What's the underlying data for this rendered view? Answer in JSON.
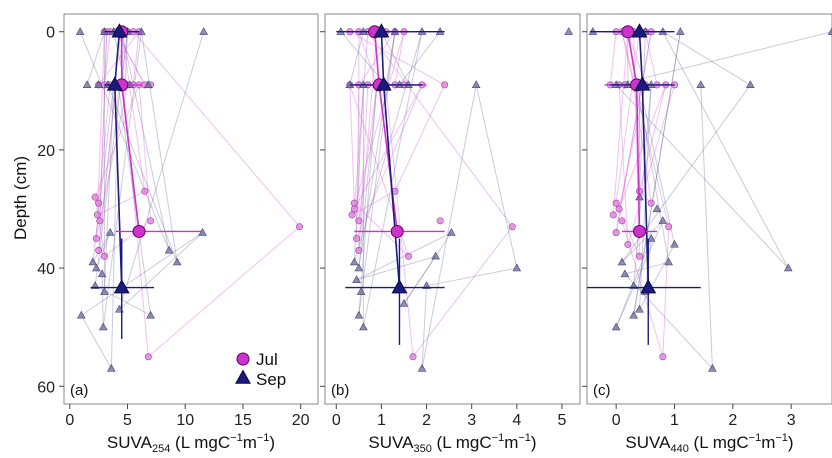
{
  "chart_data": {
    "type": "scatter",
    "ylabel": "Depth (cm)",
    "ylim": [
      63,
      -3
    ],
    "yticks": [
      0,
      20,
      40,
      60
    ],
    "legend": {
      "placement": "bottom-right of panel (a)",
      "entries": [
        {
          "label": "Jul",
          "color": "#cc33cc",
          "marker": "circle"
        },
        {
          "label": "Sep",
          "color": "#1a1a80",
          "marker": "triangle"
        }
      ]
    },
    "colors": {
      "jul": "#cc33cc",
      "jul_light": "#dd77dd",
      "sep": "#1a1a80",
      "sep_light": "#6a6a99"
    },
    "panels": [
      {
        "label": "(a)",
        "xlabel": {
          "base": "SUVA",
          "sub": "254",
          "rest": " (L mgC",
          "sup1": "−1",
          "mid": "m",
          "sup2": "−1",
          "end": ")"
        },
        "xlim": [
          -0.5,
          21.5
        ],
        "xticks": [
          0,
          5,
          10,
          15,
          20
        ],
        "jul_points": [
          [
            3.0,
            0
          ],
          [
            3.5,
            0
          ],
          [
            4.0,
            0
          ],
          [
            4.5,
            0
          ],
          [
            5.0,
            0
          ],
          [
            5.5,
            0
          ],
          [
            6.0,
            0
          ],
          [
            3.2,
            0
          ],
          [
            4.2,
            0
          ],
          [
            2.5,
            9
          ],
          [
            3.0,
            9
          ],
          [
            3.5,
            9
          ],
          [
            4.0,
            9
          ],
          [
            4.5,
            9
          ],
          [
            5.0,
            9
          ],
          [
            5.5,
            9
          ],
          [
            6.0,
            9
          ],
          [
            6.5,
            9
          ],
          [
            7.0,
            9
          ],
          [
            2.2,
            28
          ],
          [
            2.5,
            29
          ],
          [
            2.4,
            31
          ],
          [
            2.6,
            32
          ],
          [
            2.3,
            35
          ],
          [
            6.5,
            27
          ],
          [
            7.0,
            32
          ],
          [
            19.9,
            33
          ],
          [
            2.5,
            37
          ],
          [
            3.0,
            38
          ],
          [
            6.8,
            55
          ]
        ],
        "sep_points": [
          [
            0.9,
            0
          ],
          [
            3.0,
            0
          ],
          [
            3.8,
            0
          ],
          [
            4.5,
            0
          ],
          [
            5.0,
            0
          ],
          [
            6.2,
            0
          ],
          [
            11.6,
            0
          ],
          [
            1.5,
            9
          ],
          [
            2.5,
            9
          ],
          [
            3.3,
            9
          ],
          [
            3.8,
            9
          ],
          [
            4.2,
            9
          ],
          [
            4.8,
            9
          ],
          [
            5.2,
            9
          ],
          [
            6.8,
            9
          ],
          [
            3.5,
            34
          ],
          [
            11.5,
            34
          ],
          [
            8.6,
            37
          ],
          [
            9.3,
            39
          ],
          [
            2.0,
            39
          ],
          [
            2.3,
            40
          ],
          [
            2.8,
            41
          ],
          [
            2.2,
            43
          ],
          [
            3.0,
            44
          ],
          [
            4.3,
            47
          ],
          [
            7.0,
            48
          ],
          [
            1.0,
            48
          ],
          [
            2.9,
            50
          ],
          [
            3.6,
            57
          ]
        ],
        "jul_mean": {
          "x": 4.5,
          "y": 0
        },
        "jul_means": [
          [
            4.5,
            0
          ],
          [
            4.5,
            9
          ],
          [
            6.0,
            33.8
          ]
        ],
        "jul_err": [
          [
            2.8,
            6.4,
            0
          ],
          [
            3.0,
            6.2,
            9
          ],
          [
            4.0,
            11.5,
            33.8
          ]
        ],
        "sep_means": [
          [
            4.3,
            0
          ],
          [
            3.9,
            9
          ],
          [
            4.5,
            43.3
          ]
        ],
        "sep_err": [
          [
            3.0,
            6.0,
            0
          ],
          [
            3.0,
            5.0,
            9
          ],
          [
            1.8,
            7.3,
            43.3
          ]
        ],
        "sep_verr": [
          4.5,
          35,
          52
        ]
      },
      {
        "label": "(b)",
        "xlabel": {
          "base": "SUVA",
          "sub": "350",
          "rest": " (L mgC",
          "sup1": "−1",
          "mid": "m",
          "sup2": "−1",
          "end": ")"
        },
        "xlim": [
          -0.25,
          5.4
        ],
        "xticks": [
          0,
          1,
          2,
          3,
          4,
          5
        ],
        "jul_points": [
          [
            0.3,
            0
          ],
          [
            0.5,
            0
          ],
          [
            0.7,
            0
          ],
          [
            0.9,
            0
          ],
          [
            1.1,
            0
          ],
          [
            1.3,
            0
          ],
          [
            1.5,
            0
          ],
          [
            0.3,
            9
          ],
          [
            0.5,
            9
          ],
          [
            0.7,
            9
          ],
          [
            0.9,
            9
          ],
          [
            1.1,
            9
          ],
          [
            1.3,
            9
          ],
          [
            1.5,
            9
          ],
          [
            1.9,
            9
          ],
          [
            2.4,
            9
          ],
          [
            0.4,
            29
          ],
          [
            0.4,
            30
          ],
          [
            0.35,
            31
          ],
          [
            0.5,
            32
          ],
          [
            0.45,
            35
          ],
          [
            1.3,
            27
          ],
          [
            2.3,
            32
          ],
          [
            3.9,
            33
          ],
          [
            0.5,
            37
          ],
          [
            1.6,
            38
          ],
          [
            1.7,
            55
          ]
        ],
        "sep_points": [
          [
            0.1,
            0
          ],
          [
            0.6,
            0
          ],
          [
            1.0,
            0
          ],
          [
            1.3,
            0
          ],
          [
            1.9,
            0
          ],
          [
            2.3,
            0
          ],
          [
            5.15,
            0
          ],
          [
            0.3,
            9
          ],
          [
            0.6,
            9
          ],
          [
            0.9,
            9
          ],
          [
            1.1,
            9
          ],
          [
            1.4,
            9
          ],
          [
            1.6,
            9
          ],
          [
            3.1,
            9
          ],
          [
            2.55,
            34
          ],
          [
            4.0,
            40
          ],
          [
            0.4,
            39
          ],
          [
            0.5,
            40
          ],
          [
            0.45,
            42
          ],
          [
            0.55,
            44
          ],
          [
            1.5,
            46
          ],
          [
            0.5,
            48
          ],
          [
            0.6,
            50
          ],
          [
            1.9,
            57
          ],
          [
            2.2,
            38
          ],
          [
            2.0,
            43
          ]
        ],
        "jul_means": [
          [
            0.85,
            0
          ],
          [
            0.95,
            9
          ],
          [
            1.35,
            33.8
          ]
        ],
        "jul_err": [
          [
            0.3,
            2.0,
            0
          ],
          [
            0.4,
            2.0,
            9
          ],
          [
            0.4,
            2.4,
            33.8
          ]
        ],
        "sep_means": [
          [
            1.0,
            0
          ],
          [
            1.05,
            9
          ],
          [
            1.4,
            43.3
          ]
        ],
        "sep_err": [
          [
            0.0,
            2.4,
            0
          ],
          [
            0.3,
            1.9,
            9
          ],
          [
            0.2,
            2.4,
            43.3
          ]
        ],
        "sep_verr": [
          1.4,
          35,
          53
        ]
      },
      {
        "label": "(c)",
        "xlabel": {
          "base": "SUVA",
          "sub": "440",
          "rest": " (L mgC",
          "sup1": "−1",
          "mid": "m",
          "sup2": "−1",
          "end": ")"
        },
        "xlim": [
          -0.5,
          3.7
        ],
        "xticks": [
          0,
          1,
          2,
          3
        ],
        "jul_points": [
          [
            0.0,
            0
          ],
          [
            0.1,
            0
          ],
          [
            0.2,
            0
          ],
          [
            0.3,
            0
          ],
          [
            0.4,
            0
          ],
          [
            0.5,
            0
          ],
          [
            0.6,
            0
          ],
          [
            -0.1,
            9
          ],
          [
            0.05,
            9
          ],
          [
            0.15,
            9
          ],
          [
            0.3,
            9
          ],
          [
            0.5,
            9
          ],
          [
            0.7,
            9
          ],
          [
            0.85,
            9
          ],
          [
            1.0,
            9
          ],
          [
            0.0,
            29
          ],
          [
            0.05,
            30
          ],
          [
            -0.05,
            31
          ],
          [
            0.1,
            32
          ],
          [
            0.0,
            34
          ],
          [
            0.4,
            27
          ],
          [
            0.6,
            29
          ],
          [
            0.9,
            33
          ],
          [
            0.2,
            36
          ],
          [
            0.4,
            38
          ],
          [
            0.8,
            55
          ]
        ],
        "sep_points": [
          [
            -0.4,
            0
          ],
          [
            0.2,
            0
          ],
          [
            0.5,
            0
          ],
          [
            0.8,
            0
          ],
          [
            1.1,
            0
          ],
          [
            3.7,
            0
          ],
          [
            0.0,
            9
          ],
          [
            0.2,
            9
          ],
          [
            0.4,
            9
          ],
          [
            0.6,
            9
          ],
          [
            1.45,
            9
          ],
          [
            2.3,
            9
          ],
          [
            0.4,
            28
          ],
          [
            0.7,
            30
          ],
          [
            0.8,
            32
          ],
          [
            1.0,
            36
          ],
          [
            0.9,
            39
          ],
          [
            2.95,
            40
          ],
          [
            0.1,
            39
          ],
          [
            0.15,
            41
          ],
          [
            0.3,
            43
          ],
          [
            0.5,
            44
          ],
          [
            0.3,
            48
          ],
          [
            0.4,
            47
          ],
          [
            0.0,
            50
          ],
          [
            1.65,
            57
          ],
          [
            0.6,
            35
          ]
        ],
        "jul_means": [
          [
            0.2,
            0
          ],
          [
            0.35,
            9
          ],
          [
            0.4,
            33.8
          ]
        ],
        "jul_err": [
          [
            -0.2,
            0.85,
            0
          ],
          [
            -0.2,
            0.9,
            9
          ],
          [
            0.1,
            0.7,
            33.8
          ]
        ],
        "sep_means": [
          [
            0.4,
            0
          ],
          [
            0.45,
            9
          ],
          [
            0.55,
            43.3
          ]
        ],
        "sep_err": [
          [
            -0.45,
            1.0,
            0
          ],
          [
            -0.1,
            1.0,
            9
          ],
          [
            -0.5,
            1.45,
            43.3
          ]
        ],
        "sep_verr": [
          0.55,
          35,
          53
        ]
      }
    ]
  }
}
